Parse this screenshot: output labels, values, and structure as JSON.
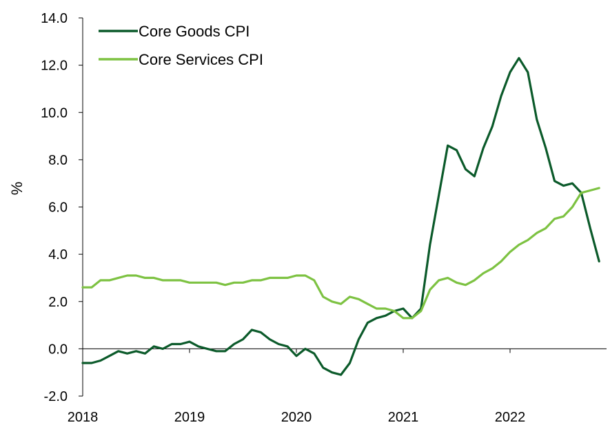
{
  "chart_data": {
    "type": "line",
    "title": "",
    "xlabel": "",
    "ylabel": "%",
    "ylim": [
      -2.0,
      14.0
    ],
    "yticks": [
      "-2.0",
      "0.0",
      "2.0",
      "4.0",
      "6.0",
      "8.0",
      "10.0",
      "12.0",
      "14.0"
    ],
    "xticks": [
      "2018",
      "2019",
      "2020",
      "2021",
      "2022"
    ],
    "x_start": "2018-01",
    "x_end": "2022-11",
    "grid": false,
    "legend_position": "top-left",
    "series": [
      {
        "name": "Core Goods CPI",
        "color": "#0b5a2a",
        "values": [
          -0.6,
          -0.6,
          -0.5,
          -0.3,
          -0.1,
          -0.2,
          -0.1,
          -0.2,
          0.1,
          0.0,
          0.2,
          0.2,
          0.3,
          0.1,
          0.0,
          -0.1,
          -0.1,
          0.2,
          0.4,
          0.8,
          0.7,
          0.4,
          0.2,
          0.1,
          -0.3,
          0.0,
          -0.2,
          -0.8,
          -1.0,
          -1.1,
          -0.6,
          0.4,
          1.1,
          1.3,
          1.4,
          1.6,
          1.7,
          1.3,
          1.7,
          4.4,
          6.5,
          8.6,
          8.4,
          7.6,
          7.3,
          8.5,
          9.4,
          10.7,
          11.7,
          12.3,
          11.7,
          9.7,
          8.5,
          7.1,
          6.9,
          7.0,
          6.6,
          5.1,
          3.7
        ],
        "x_end": "2022-12"
      },
      {
        "name": "Core Services CPI",
        "color": "#7dc242",
        "values": [
          2.6,
          2.6,
          2.9,
          2.9,
          3.0,
          3.1,
          3.1,
          3.0,
          3.0,
          2.9,
          2.9,
          2.9,
          2.8,
          2.8,
          2.8,
          2.8,
          2.7,
          2.8,
          2.8,
          2.9,
          2.9,
          3.0,
          3.0,
          3.0,
          3.1,
          3.1,
          2.9,
          2.2,
          2.0,
          1.9,
          2.2,
          2.1,
          1.9,
          1.7,
          1.7,
          1.6,
          1.3,
          1.3,
          1.6,
          2.5,
          2.9,
          3.0,
          2.8,
          2.7,
          2.9,
          3.2,
          3.4,
          3.7,
          4.1,
          4.4,
          4.6,
          4.9,
          5.1,
          5.5,
          5.6,
          6.0,
          6.6,
          6.7,
          6.8
        ],
        "x_end": "2022-12"
      }
    ]
  }
}
